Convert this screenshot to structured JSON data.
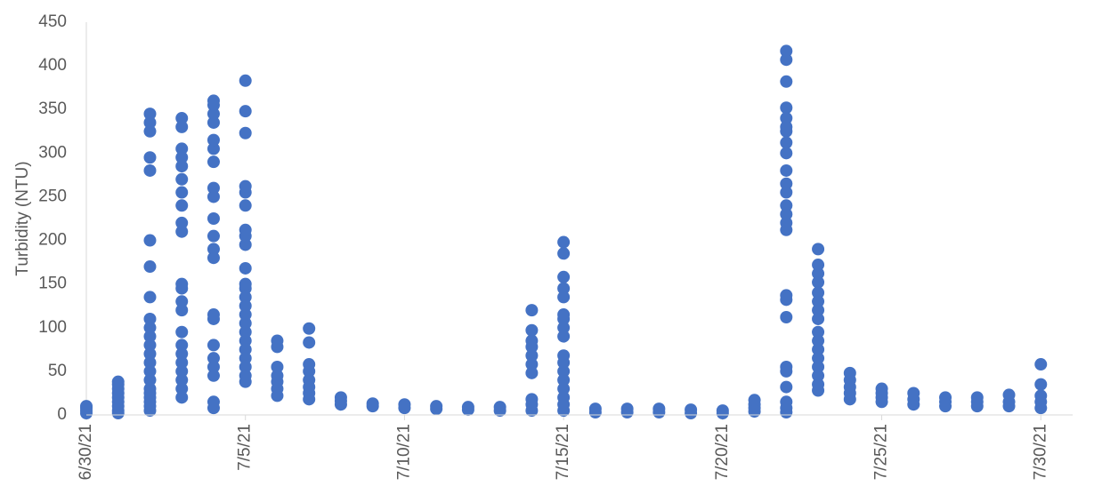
{
  "chart_data": {
    "type": "scatter",
    "y_label": "Turbidity (NTU)",
    "color": "#4472c4",
    "xlim": [
      "6/30/21",
      "7/31/21"
    ],
    "xticks": [
      "6/30/21",
      "7/5/21",
      "7/10/21",
      "7/15/21",
      "7/20/21",
      "7/25/21",
      "7/30/21"
    ],
    "ylim": [
      0,
      450
    ],
    "yticks": [
      0,
      50,
      100,
      150,
      200,
      250,
      300,
      350,
      400,
      450
    ],
    "x": [
      "6/30/21",
      "6/30/21",
      "6/30/21",
      "6/30/21",
      "7/1/21",
      "7/1/21",
      "7/1/21",
      "7/1/21",
      "7/1/21",
      "7/1/21",
      "7/1/21",
      "7/1/21",
      "7/1/21",
      "7/2/21",
      "7/2/21",
      "7/2/21",
      "7/2/21",
      "7/2/21",
      "7/2/21",
      "7/2/21",
      "7/2/21",
      "7/2/21",
      "7/2/21",
      "7/2/21",
      "7/2/21",
      "7/2/21",
      "7/2/21",
      "7/2/21",
      "7/2/21",
      "7/2/21",
      "7/2/21",
      "7/2/21",
      "7/2/21",
      "7/2/21",
      "7/2/21",
      "7/3/21",
      "7/3/21",
      "7/3/21",
      "7/3/21",
      "7/3/21",
      "7/3/21",
      "7/3/21",
      "7/3/21",
      "7/3/21",
      "7/3/21",
      "7/3/21",
      "7/3/21",
      "7/3/21",
      "7/3/21",
      "7/3/21",
      "7/3/21",
      "7/3/21",
      "7/3/21",
      "7/3/21",
      "7/3/21",
      "7/3/21",
      "7/3/21",
      "7/4/21",
      "7/4/21",
      "7/4/21",
      "7/4/21",
      "7/4/21",
      "7/4/21",
      "7/4/21",
      "7/4/21",
      "7/4/21",
      "7/4/21",
      "7/4/21",
      "7/4/21",
      "7/4/21",
      "7/4/21",
      "7/4/21",
      "7/4/21",
      "7/4/21",
      "7/4/21",
      "7/4/21",
      "7/4/21",
      "7/4/21",
      "7/5/21",
      "7/5/21",
      "7/5/21",
      "7/5/21",
      "7/5/21",
      "7/5/21",
      "7/5/21",
      "7/5/21",
      "7/5/21",
      "7/5/21",
      "7/5/21",
      "7/5/21",
      "7/5/21",
      "7/5/21",
      "7/5/21",
      "7/5/21",
      "7/5/21",
      "7/5/21",
      "7/5/21",
      "7/5/21",
      "7/5/21",
      "7/5/21",
      "7/5/21",
      "7/6/21",
      "7/6/21",
      "7/6/21",
      "7/6/21",
      "7/6/21",
      "7/6/21",
      "7/6/21",
      "7/7/21",
      "7/7/21",
      "7/7/21",
      "7/7/21",
      "7/7/21",
      "7/7/21",
      "7/7/21",
      "7/7/21",
      "7/8/21",
      "7/8/21",
      "7/8/21",
      "7/9/21",
      "7/9/21",
      "7/10/21",
      "7/10/21",
      "7/11/21",
      "7/11/21",
      "7/12/21",
      "7/12/21",
      "7/13/21",
      "7/13/21",
      "7/14/21",
      "7/14/21",
      "7/14/21",
      "7/14/21",
      "7/14/21",
      "7/14/21",
      "7/14/21",
      "7/14/21",
      "7/14/21",
      "7/14/21",
      "7/15/21",
      "7/15/21",
      "7/15/21",
      "7/15/21",
      "7/15/21",
      "7/15/21",
      "7/15/21",
      "7/15/21",
      "7/15/21",
      "7/15/21",
      "7/15/21",
      "7/15/21",
      "7/15/21",
      "7/15/21",
      "7/15/21",
      "7/15/21",
      "7/15/21",
      "7/16/21",
      "7/16/21",
      "7/17/21",
      "7/17/21",
      "7/18/21",
      "7/18/21",
      "7/19/21",
      "7/19/21",
      "7/20/21",
      "7/20/21",
      "7/21/21",
      "7/21/21",
      "7/21/21",
      "7/21/21",
      "7/22/21",
      "7/22/21",
      "7/22/21",
      "7/22/21",
      "7/22/21",
      "7/22/21",
      "7/22/21",
      "7/22/21",
      "7/22/21",
      "7/22/21",
      "7/22/21",
      "7/22/21",
      "7/22/21",
      "7/22/21",
      "7/22/21",
      "7/22/21",
      "7/22/21",
      "7/22/21",
      "7/22/21",
      "7/22/21",
      "7/22/21",
      "7/22/21",
      "7/22/21",
      "7/22/21",
      "7/22/21",
      "7/23/21",
      "7/23/21",
      "7/23/21",
      "7/23/21",
      "7/23/21",
      "7/23/21",
      "7/23/21",
      "7/23/21",
      "7/23/21",
      "7/23/21",
      "7/23/21",
      "7/23/21",
      "7/23/21",
      "7/23/21",
      "7/23/21",
      "7/23/21",
      "7/24/21",
      "7/24/21",
      "7/24/21",
      "7/24/21",
      "7/24/21",
      "7/25/21",
      "7/25/21",
      "7/25/21",
      "7/25/21",
      "7/26/21",
      "7/26/21",
      "7/26/21",
      "7/27/21",
      "7/27/21",
      "7/27/21",
      "7/28/21",
      "7/28/21",
      "7/28/21",
      "7/29/21",
      "7/29/21",
      "7/29/21",
      "7/30/21",
      "7/30/21",
      "7/30/21",
      "7/30/21",
      "7/30/21"
    ],
    "values": [
      2,
      5,
      8,
      10,
      2,
      5,
      10,
      15,
      20,
      25,
      30,
      35,
      38,
      5,
      10,
      15,
      20,
      25,
      30,
      40,
      50,
      60,
      70,
      80,
      90,
      100,
      110,
      135,
      170,
      200,
      280,
      295,
      325,
      335,
      345,
      20,
      30,
      40,
      50,
      60,
      70,
      80,
      95,
      120,
      130,
      145,
      150,
      210,
      220,
      240,
      255,
      270,
      285,
      295,
      305,
      330,
      340,
      8,
      15,
      45,
      55,
      65,
      80,
      110,
      115,
      180,
      190,
      205,
      225,
      250,
      260,
      290,
      305,
      315,
      335,
      345,
      355,
      360,
      38,
      45,
      55,
      65,
      75,
      85,
      95,
      105,
      115,
      125,
      135,
      145,
      150,
      168,
      195,
      205,
      212,
      240,
      255,
      262,
      323,
      348,
      383,
      22,
      30,
      38,
      45,
      55,
      78,
      85,
      18,
      25,
      32,
      40,
      50,
      58,
      83,
      99,
      12,
      16,
      20,
      10,
      13,
      8,
      12,
      7,
      10,
      6,
      9,
      5,
      9,
      5,
      12,
      18,
      48,
      58,
      68,
      78,
      85,
      97,
      120,
      5,
      12,
      20,
      30,
      40,
      50,
      60,
      68,
      90,
      100,
      110,
      115,
      135,
      145,
      158,
      185,
      198,
      3,
      7,
      3,
      7,
      3,
      7,
      2,
      6,
      2,
      5,
      4,
      8,
      12,
      17,
      3,
      8,
      15,
      32,
      50,
      55,
      112,
      132,
      137,
      212,
      220,
      230,
      240,
      255,
      265,
      280,
      300,
      312,
      325,
      330,
      340,
      352,
      382,
      407,
      417,
      28,
      35,
      45,
      55,
      65,
      75,
      85,
      95,
      110,
      120,
      130,
      140,
      152,
      162,
      172,
      190,
      18,
      25,
      32,
      40,
      48,
      15,
      20,
      25,
      30,
      12,
      18,
      25,
      10,
      15,
      20,
      10,
      15,
      20,
      10,
      15,
      23,
      8,
      15,
      22,
      35,
      58
    ]
  }
}
